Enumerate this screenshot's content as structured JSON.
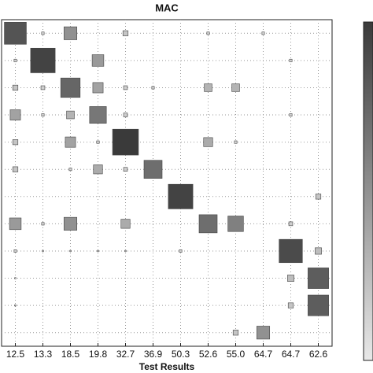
{
  "chart_data": {
    "type": "matrix",
    "title": "MAC",
    "x_label": "Test Results",
    "categories": [
      "12.5",
      "13.3",
      "18.5",
      "19.8",
      "32.7",
      "36.9",
      "50.3",
      "52.6",
      "55.0",
      "64.7",
      "64.7",
      "62.6"
    ],
    "matrix": [
      [
        0.85,
        0.1,
        0.5,
        0,
        0.2,
        0,
        0,
        0.1,
        0,
        0.1,
        0,
        0
      ],
      [
        0.1,
        0.95,
        0,
        0.45,
        0,
        0,
        0,
        0,
        0,
        0,
        0.1,
        0
      ],
      [
        0.2,
        0.15,
        0.75,
        0.4,
        0.15,
        0.1,
        0,
        0.3,
        0.3,
        0,
        0,
        0
      ],
      [
        0.4,
        0.1,
        0.3,
        0.65,
        0.15,
        0,
        0,
        0,
        0,
        0,
        0.1,
        0
      ],
      [
        0.2,
        0,
        0.4,
        0.1,
        1.0,
        0,
        0,
        0.35,
        0.1,
        0,
        0,
        0
      ],
      [
        0.2,
        0,
        0.1,
        0.35,
        0.15,
        0.7,
        0,
        0,
        0,
        0,
        0,
        0
      ],
      [
        0,
        0,
        0,
        0,
        0,
        0,
        0.95,
        0,
        0,
        0,
        0,
        0.2
      ],
      [
        0.45,
        0.1,
        0.5,
        0,
        0.35,
        0,
        0,
        0.7,
        0.6,
        0,
        0.15,
        0
      ],
      [
        0.1,
        0.05,
        0.05,
        0.05,
        0.05,
        0,
        0.1,
        0,
        0,
        0,
        0.9,
        0.25
      ],
      [
        0.05,
        0,
        0,
        0,
        0,
        0,
        0,
        0,
        0,
        0,
        0.25,
        0.8
      ],
      [
        0.05,
        0,
        0,
        0,
        0,
        0,
        0,
        0,
        0,
        0,
        0.2,
        0.8
      ],
      [
        0,
        0,
        0,
        0,
        0,
        0,
        0,
        0,
        0.2,
        0.5,
        0,
        0
      ]
    ],
    "colormap": [
      "#e8e8e8",
      "#3a3a3a"
    ],
    "grid": true
  }
}
